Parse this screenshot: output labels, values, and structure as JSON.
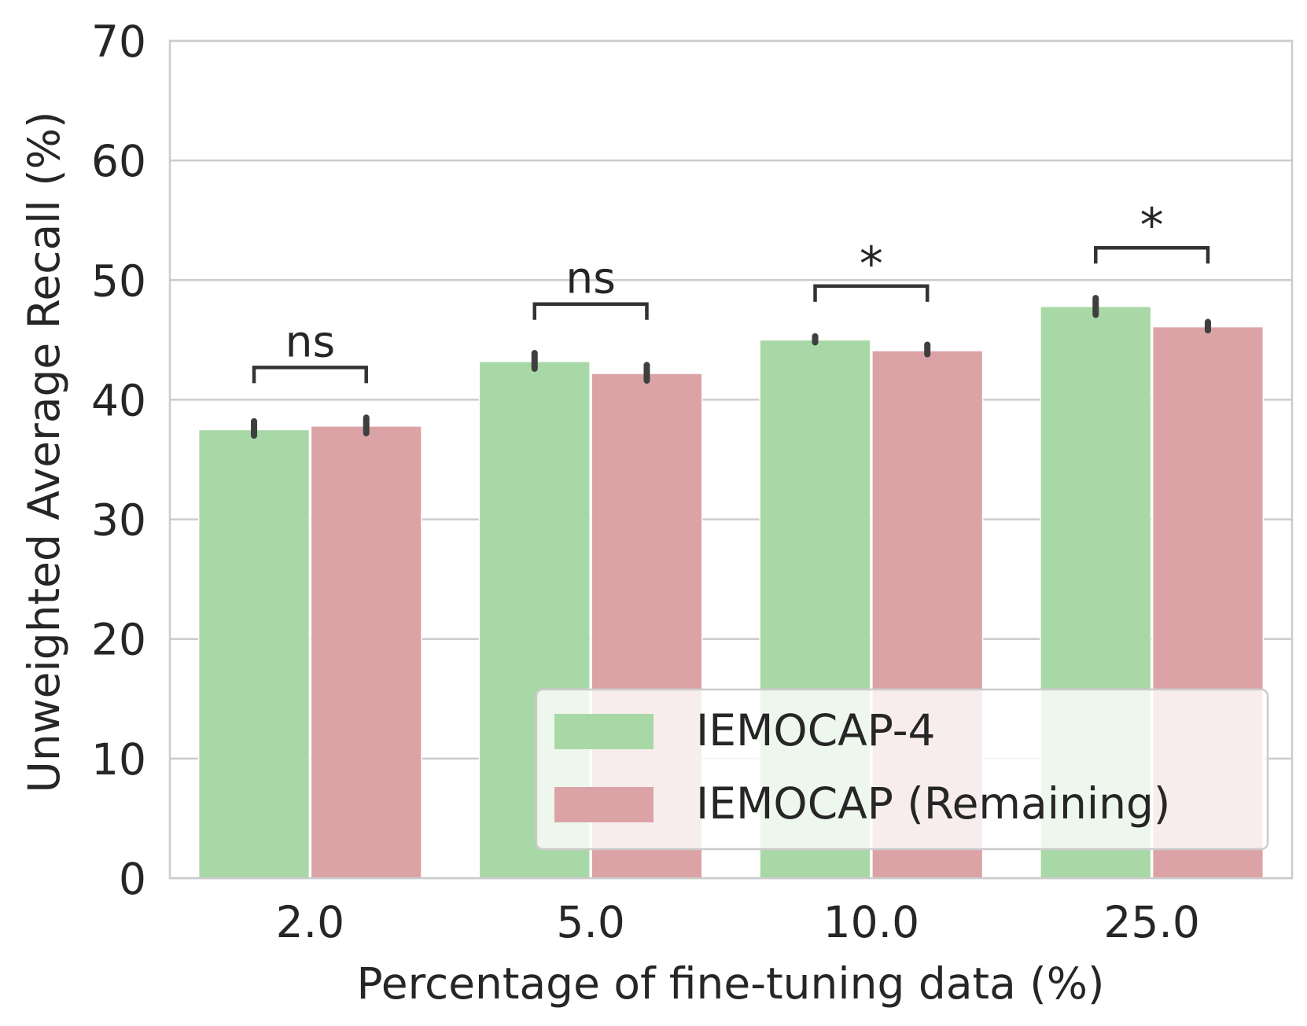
{
  "chart_data": {
    "type": "bar",
    "title": "",
    "xlabel": "Percentage of fine-tuning data (%)",
    "ylabel": "Unweighted Average Recall (%)",
    "categories": [
      "2.0",
      "5.0",
      "10.0",
      "25.0"
    ],
    "ylim": [
      0,
      70
    ],
    "yticks": [
      0,
      10,
      20,
      30,
      40,
      50,
      60,
      70
    ],
    "yticklabels": [
      "0",
      "10",
      "20",
      "30",
      "40",
      "50",
      "60",
      "70"
    ],
    "grid": true,
    "legend_position": "lower-right",
    "series": [
      {
        "name": "IEMOCAP-4",
        "color": "#a8d8a6",
        "values": [
          37.5,
          43.2,
          45.0,
          47.8
        ],
        "error_low": [
          37.0,
          42.6,
          44.8,
          47.1
        ],
        "error_high": [
          38.2,
          43.9,
          45.3,
          48.5
        ]
      },
      {
        "name": "IEMOCAP (Remaining)",
        "color": "#dca3a6",
        "values": [
          37.8,
          42.2,
          44.1,
          46.1
        ],
        "error_low": [
          37.2,
          41.6,
          43.8,
          45.8
        ],
        "error_high": [
          38.5,
          42.9,
          44.6,
          46.5
        ]
      }
    ],
    "annotations": [
      {
        "category": "2.0",
        "label": "ns",
        "bracket_y": 42.7
      },
      {
        "category": "5.0",
        "label": "ns",
        "bracket_y": 48.0
      },
      {
        "category": "10.0",
        "label": "*",
        "bracket_y": 49.5
      },
      {
        "category": "25.0",
        "label": "*",
        "bracket_y": 52.7
      }
    ]
  },
  "colors": {
    "grid": "#cccccc",
    "frame": "#cccccc",
    "errorbar": "#3f3f3f",
    "bracket": "#333333",
    "text": "#262626"
  }
}
